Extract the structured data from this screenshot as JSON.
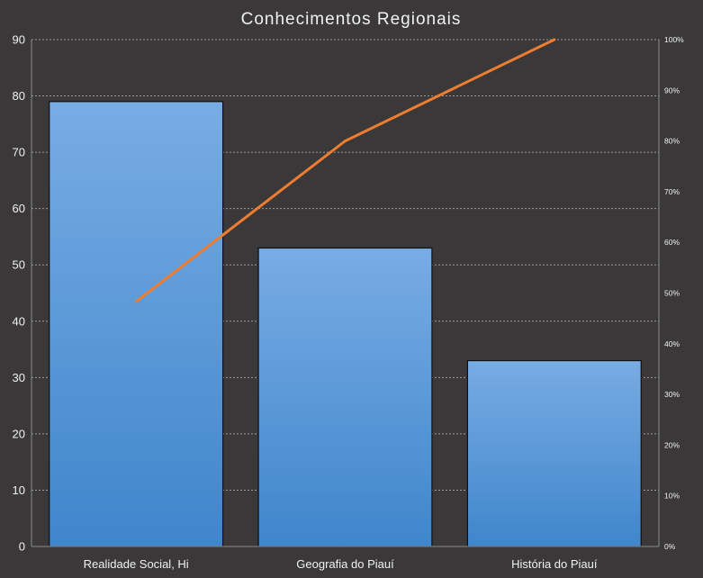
{
  "chart_data": {
    "type": "bar",
    "title": "Conhecimentos Regionais",
    "categories": [
      "Realidade Social, Hi",
      "Geografia do Piauí",
      "História do Piauí"
    ],
    "series": [
      {
        "type": "bar",
        "values": [
          79,
          53,
          33
        ],
        "color": "#5b9bd5"
      },
      {
        "type": "line",
        "axis": "secondary",
        "values": [
          48.3,
          80.0,
          100.0
        ],
        "color": "#ed7d31"
      }
    ],
    "ylim": [
      0,
      90
    ],
    "yticks": [
      0,
      10,
      20,
      30,
      40,
      50,
      60,
      70,
      80,
      90
    ],
    "y2lim": [
      0,
      100
    ],
    "y2ticks": [
      "0%",
      "10%",
      "20%",
      "30%",
      "40%",
      "50%",
      "60%",
      "70%",
      "80%",
      "90%",
      "100%"
    ],
    "grid": true,
    "legend": "none"
  },
  "colors": {
    "background": "#3a3838",
    "bar_top": "#78ace4",
    "bar_bottom": "#3f86cb",
    "line": "#ed7d31"
  }
}
